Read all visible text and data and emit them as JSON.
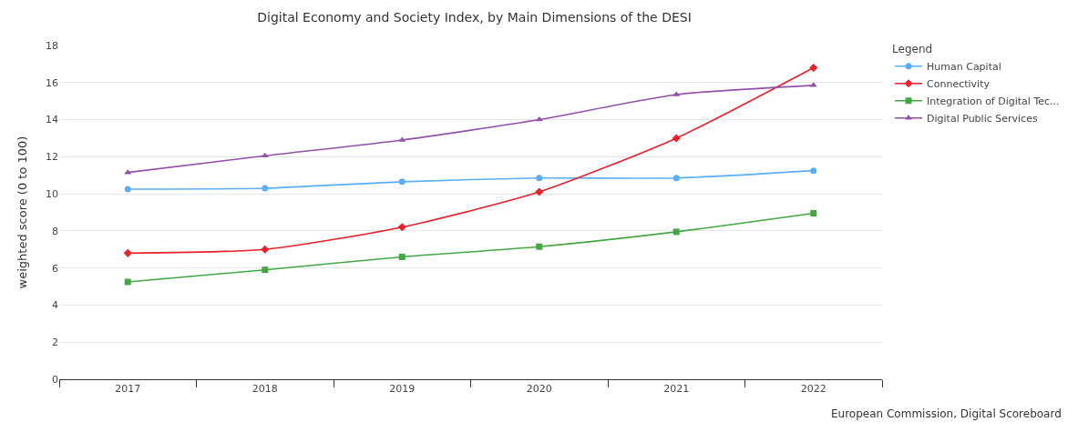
{
  "chart_data": {
    "type": "line",
    "title": "Digital Economy and Society Index, by Main Dimensions of the DESI",
    "ylabel": "weighted score (0 to 100)",
    "legend_title": "Legend",
    "categories": [
      "2017",
      "2018",
      "2019",
      "2020",
      "2021",
      "2022"
    ],
    "series": [
      {
        "name": "Human Capital",
        "color": "#5aaef5",
        "marker": "circle",
        "values": [
          10.25,
          10.3,
          10.65,
          10.85,
          10.85,
          11.25
        ]
      },
      {
        "name": "Connectivity",
        "color": "#e8202a",
        "marker": "diamond",
        "values": [
          6.8,
          7.0,
          8.2,
          10.1,
          13.0,
          16.8
        ]
      },
      {
        "name": "Integration of Digital Tec...",
        "color": "#43a843",
        "marker": "square",
        "values": [
          5.25,
          5.9,
          6.6,
          7.15,
          7.95,
          8.95
        ]
      },
      {
        "name": "Digital Public Services",
        "color": "#9350a8",
        "marker": "triangle",
        "values": [
          11.15,
          12.05,
          12.9,
          14.0,
          15.35,
          15.85
        ]
      }
    ],
    "ylim": [
      0,
      18
    ],
    "yticks": [
      0,
      2,
      4,
      6,
      8,
      10,
      12,
      14,
      16,
      18
    ],
    "grid": "y",
    "legend": "top right",
    "annotations": [
      "European Commission, Digital Scoreboard"
    ]
  }
}
